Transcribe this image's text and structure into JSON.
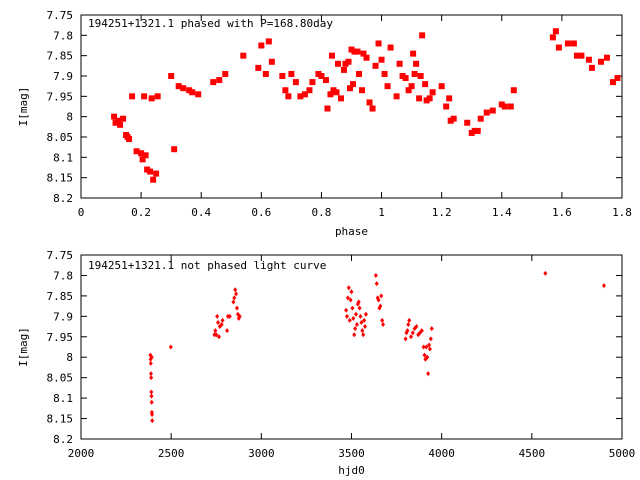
{
  "chart_data": [
    {
      "type": "scatter",
      "title": "194251+1321.1 phased with P=168.80day",
      "xlabel": "phase",
      "ylabel": "I[mag]",
      "xlim": [
        0,
        1.8
      ],
      "ylim": [
        8.2,
        7.75
      ],
      "y_inverted": true,
      "xticks": [
        0,
        0.2,
        0.4,
        0.6,
        0.8,
        1,
        1.2,
        1.4,
        1.6,
        1.8
      ],
      "xtick_labels": [
        "0",
        "0.2",
        "0.4",
        "0.6",
        "0.8",
        "1",
        "1.2",
        "1.4",
        "1.6",
        "1.8"
      ],
      "yticks": [
        7.75,
        7.8,
        7.85,
        7.9,
        7.95,
        8,
        8.05,
        8.1,
        8.15,
        8.2
      ],
      "ytick_labels": [
        "7.75",
        "7.8",
        "7.85",
        "7.9",
        "7.95",
        "8",
        "8.05",
        "8.1",
        "8.15",
        "8.2"
      ],
      "marker": "filled-square",
      "color": "#ff0000",
      "grid": false,
      "series": [
        {
          "points": [
            [
              0.11,
              8.0
            ],
            [
              0.115,
              8.015
            ],
            [
              0.125,
              8.01
            ],
            [
              0.13,
              8.02
            ],
            [
              0.14,
              8.005
            ],
            [
              0.15,
              8.045
            ],
            [
              0.155,
              8.05
            ],
            [
              0.16,
              8.055
            ],
            [
              0.17,
              7.95
            ],
            [
              0.185,
              8.085
            ],
            [
              0.2,
              8.09
            ],
            [
              0.205,
              8.105
            ],
            [
              0.21,
              7.95
            ],
            [
              0.215,
              8.095
            ],
            [
              0.22,
              8.13
            ],
            [
              0.23,
              8.135
            ],
            [
              0.235,
              7.955
            ],
            [
              0.24,
              8.155
            ],
            [
              0.25,
              8.14
            ],
            [
              0.255,
              7.95
            ],
            [
              0.3,
              7.9
            ],
            [
              0.31,
              8.08
            ],
            [
              0.325,
              7.925
            ],
            [
              0.34,
              7.93
            ],
            [
              0.36,
              7.935
            ],
            [
              0.37,
              7.94
            ],
            [
              0.39,
              7.945
            ],
            [
              0.44,
              7.915
            ],
            [
              0.46,
              7.91
            ],
            [
              0.48,
              7.895
            ],
            [
              0.54,
              7.85
            ],
            [
              0.59,
              7.88
            ],
            [
              0.6,
              7.825
            ],
            [
              0.615,
              7.895
            ],
            [
              0.625,
              7.815
            ],
            [
              0.635,
              7.865
            ],
            [
              0.67,
              7.9
            ],
            [
              0.68,
              7.935
            ],
            [
              0.69,
              7.95
            ],
            [
              0.7,
              7.895
            ],
            [
              0.715,
              7.915
            ],
            [
              0.73,
              7.95
            ],
            [
              0.745,
              7.945
            ],
            [
              0.76,
              7.935
            ],
            [
              0.77,
              7.915
            ],
            [
              0.79,
              7.895
            ],
            [
              0.8,
              7.9
            ],
            [
              0.815,
              7.91
            ],
            [
              0.82,
              7.98
            ],
            [
              0.83,
              7.945
            ],
            [
              0.835,
              7.85
            ],
            [
              0.84,
              7.935
            ],
            [
              0.85,
              7.94
            ],
            [
              0.855,
              7.87
            ],
            [
              0.865,
              7.955
            ],
            [
              0.875,
              7.885
            ],
            [
              0.88,
              7.87
            ],
            [
              0.89,
              7.865
            ],
            [
              0.895,
              7.93
            ],
            [
              0.9,
              7.835
            ],
            [
              0.905,
              7.92
            ],
            [
              0.91,
              7.84
            ],
            [
              0.92,
              7.84
            ],
            [
              0.925,
              7.895
            ],
            [
              0.935,
              7.935
            ],
            [
              0.94,
              7.845
            ],
            [
              0.95,
              7.855
            ],
            [
              0.96,
              7.965
            ],
            [
              0.97,
              7.98
            ],
            [
              0.98,
              7.875
            ],
            [
              0.99,
              7.82
            ],
            [
              1.0,
              7.86
            ],
            [
              1.01,
              7.895
            ],
            [
              1.02,
              7.925
            ],
            [
              1.03,
              7.83
            ],
            [
              1.05,
              7.95
            ],
            [
              1.06,
              7.87
            ],
            [
              1.07,
              7.9
            ],
            [
              1.08,
              7.905
            ],
            [
              1.09,
              7.935
            ],
            [
              1.1,
              7.925
            ],
            [
              1.105,
              7.845
            ],
            [
              1.11,
              7.895
            ],
            [
              1.115,
              7.87
            ],
            [
              1.125,
              7.955
            ],
            [
              1.13,
              7.9
            ],
            [
              1.135,
              7.8
            ],
            [
              1.145,
              7.92
            ],
            [
              1.15,
              7.96
            ],
            [
              1.16,
              7.955
            ],
            [
              1.17,
              7.94
            ],
            [
              1.2,
              7.925
            ],
            [
              1.215,
              7.975
            ],
            [
              1.225,
              7.955
            ],
            [
              1.23,
              8.01
            ],
            [
              1.24,
              8.005
            ],
            [
              1.285,
              8.015
            ],
            [
              1.3,
              8.04
            ],
            [
              1.31,
              8.035
            ],
            [
              1.32,
              8.035
            ],
            [
              1.33,
              8.005
            ],
            [
              1.35,
              7.99
            ],
            [
              1.37,
              7.985
            ],
            [
              1.4,
              7.97
            ],
            [
              1.41,
              7.975
            ],
            [
              1.43,
              7.975
            ],
            [
              1.44,
              7.935
            ],
            [
              1.57,
              7.805
            ],
            [
              1.58,
              7.79
            ],
            [
              1.59,
              7.83
            ],
            [
              1.62,
              7.82
            ],
            [
              1.64,
              7.82
            ],
            [
              1.65,
              7.85
            ],
            [
              1.665,
              7.85
            ],
            [
              1.69,
              7.86
            ],
            [
              1.7,
              7.88
            ],
            [
              1.73,
              7.865
            ],
            [
              1.75,
              7.855
            ],
            [
              1.77,
              7.915
            ],
            [
              1.785,
              7.905
            ]
          ]
        }
      ]
    },
    {
      "type": "scatter",
      "title": "194251+1321.1 not phased light curve",
      "xlabel": "hjd0",
      "ylabel": "I[mag]",
      "xlim": [
        2000,
        5000
      ],
      "ylim": [
        8.2,
        7.75
      ],
      "y_inverted": true,
      "xticks": [
        2000,
        2500,
        3000,
        3500,
        4000,
        4500,
        5000
      ],
      "xtick_labels": [
        "2000",
        "2500",
        "3000",
        "3500",
        "4000",
        "4500",
        "5000"
      ],
      "yticks": [
        7.75,
        7.8,
        7.85,
        7.9,
        7.95,
        8,
        8.05,
        8.1,
        8.15,
        8.2
      ],
      "ytick_labels": [
        "7.75",
        "7.8",
        "7.85",
        "7.9",
        "7.95",
        "8",
        "8.05",
        "8.1",
        "8.15",
        "8.2"
      ],
      "marker": "small-diamond",
      "color": "#ff0000",
      "grid": false,
      "series": [
        {
          "points": [
            [
              2385,
              7.995
            ],
            [
              2386,
              8.005
            ],
            [
              2387,
              8.015
            ],
            [
              2388,
              8.04
            ],
            [
              2389,
              8.05
            ],
            [
              2390,
              8.085
            ],
            [
              2391,
              8.095
            ],
            [
              2392,
              8.11
            ],
            [
              2393,
              8.135
            ],
            [
              2394,
              8.14
            ],
            [
              2395,
              8.155
            ],
            [
              2392,
              8.0
            ],
            [
              2498,
              7.975
            ],
            [
              2740,
              7.945
            ],
            [
              2745,
              7.935
            ],
            [
              2750,
              7.945
            ],
            [
              2755,
              7.9
            ],
            [
              2760,
              7.915
            ],
            [
              2765,
              7.95
            ],
            [
              2770,
              7.925
            ],
            [
              2780,
              7.92
            ],
            [
              2785,
              7.91
            ],
            [
              2810,
              7.935
            ],
            [
              2815,
              7.9
            ],
            [
              2825,
              7.9
            ],
            [
              2845,
              7.865
            ],
            [
              2850,
              7.855
            ],
            [
              2855,
              7.835
            ],
            [
              2860,
              7.845
            ],
            [
              2865,
              7.88
            ],
            [
              2870,
              7.895
            ],
            [
              2875,
              7.905
            ],
            [
              2880,
              7.9
            ],
            [
              3470,
              7.885
            ],
            [
              3475,
              7.9
            ],
            [
              3480,
              7.855
            ],
            [
              3485,
              7.83
            ],
            [
              3490,
              7.91
            ],
            [
              3495,
              7.86
            ],
            [
              3500,
              7.84
            ],
            [
              3505,
              7.88
            ],
            [
              3510,
              7.905
            ],
            [
              3515,
              7.945
            ],
            [
              3520,
              7.93
            ],
            [
              3525,
              7.895
            ],
            [
              3530,
              7.92
            ],
            [
              3535,
              7.87
            ],
            [
              3540,
              7.865
            ],
            [
              3545,
              7.88
            ],
            [
              3550,
              7.9
            ],
            [
              3555,
              7.915
            ],
            [
              3560,
              7.935
            ],
            [
              3565,
              7.945
            ],
            [
              3570,
              7.91
            ],
            [
              3575,
              7.925
            ],
            [
              3580,
              7.895
            ],
            [
              3635,
              7.8
            ],
            [
              3640,
              7.82
            ],
            [
              3645,
              7.855
            ],
            [
              3650,
              7.86
            ],
            [
              3655,
              7.88
            ],
            [
              3660,
              7.875
            ],
            [
              3665,
              7.85
            ],
            [
              3670,
              7.91
            ],
            [
              3675,
              7.92
            ],
            [
              3800,
              7.955
            ],
            [
              3805,
              7.94
            ],
            [
              3810,
              7.935
            ],
            [
              3815,
              7.92
            ],
            [
              3820,
              7.91
            ],
            [
              3830,
              7.95
            ],
            [
              3840,
              7.94
            ],
            [
              3850,
              7.93
            ],
            [
              3860,
              7.925
            ],
            [
              3870,
              7.945
            ],
            [
              3880,
              7.94
            ],
            [
              3890,
              7.935
            ],
            [
              3900,
              7.975
            ],
            [
              3905,
              7.995
            ],
            [
              3910,
              8.005
            ],
            [
              3915,
              7.975
            ],
            [
              3920,
              8.0
            ],
            [
              3925,
              8.04
            ],
            [
              3930,
              7.97
            ],
            [
              3935,
              7.98
            ],
            [
              3940,
              7.955
            ],
            [
              3945,
              7.93
            ],
            [
              4575,
              7.795
            ],
            [
              4900,
              7.825
            ]
          ]
        }
      ]
    }
  ]
}
